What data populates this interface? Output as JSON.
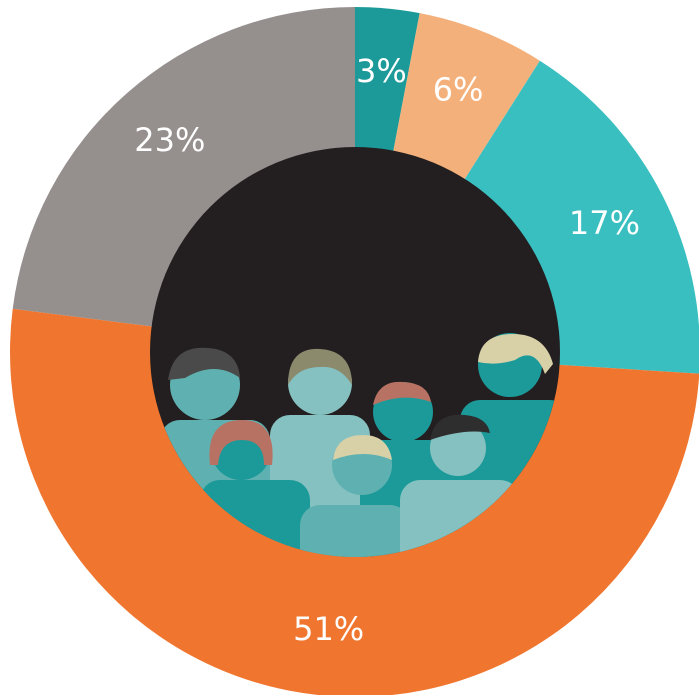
{
  "chart_data": {
    "type": "pie",
    "values": [
      3,
      6,
      17,
      51,
      23
    ],
    "value_labels": [
      "3%",
      "6%",
      "17%",
      "51%",
      "23%"
    ],
    "colors": [
      "#1b9a99",
      "#f4b07b",
      "#3abfc1",
      "#f07630",
      "#958f8e"
    ],
    "donut": true
  }
}
